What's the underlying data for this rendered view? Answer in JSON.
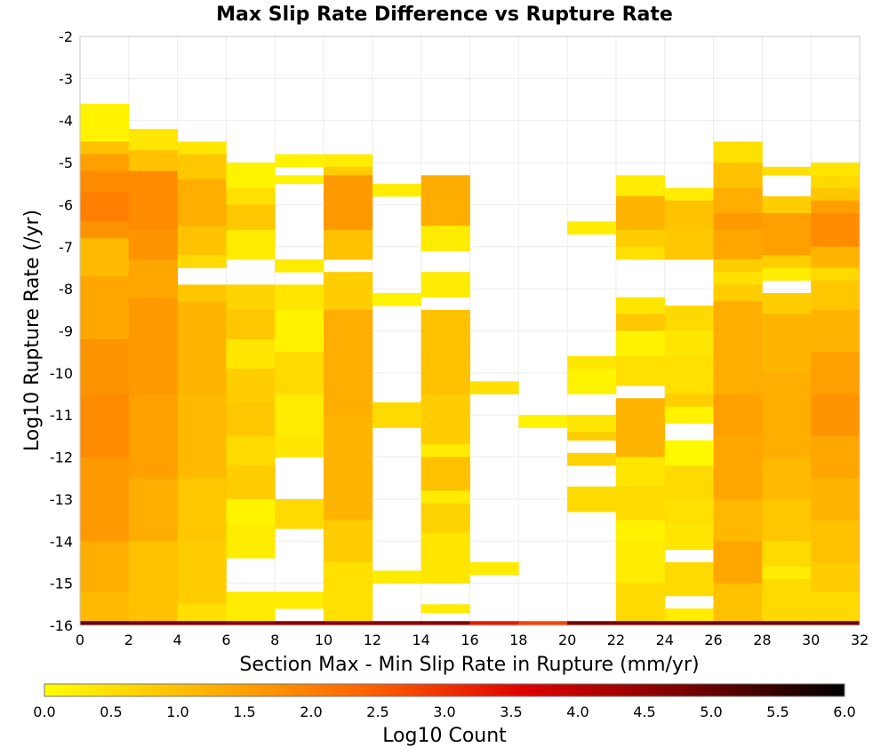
{
  "chart_data": {
    "type": "heatmap",
    "title": "Max Slip Rate Difference vs Rupture Rate",
    "xlabel": "Section Max - Min Slip Rate in Rupture (mm/yr)",
    "ylabel": "Log10 Rupture Rate (/yr)",
    "xlim": [
      0,
      32
    ],
    "ylim": [
      -16,
      -2
    ],
    "x_ticks": [
      "0",
      "2",
      "4",
      "6",
      "8",
      "10",
      "12",
      "14",
      "16",
      "18",
      "20",
      "22",
      "24",
      "26",
      "28",
      "30",
      "32"
    ],
    "y_ticks": [
      "-2",
      "-3",
      "-4",
      "-5",
      "-6",
      "-7",
      "-8",
      "-9",
      "-10",
      "-11",
      "-12",
      "-13",
      "-14",
      "-15",
      "-16"
    ],
    "x_bin_width": 2,
    "y_bin_height": 0.3,
    "color_scale": {
      "label": "Log10 Count",
      "min": 0.0,
      "max": 6.0,
      "ticks": [
        "0.0",
        "0.5",
        "1.0",
        "1.5",
        "2.0",
        "2.5",
        "3.0",
        "3.5",
        "4.0",
        "4.5",
        "5.0",
        "5.5",
        "6.0"
      ],
      "colors": [
        "#ffff00",
        "#ffb400",
        "#ff6400",
        "#e00000",
        "#7a0000",
        "#000000"
      ]
    },
    "columns": [
      {
        "x_start": 0,
        "runs": [
          [
            -4.5,
            -3.6,
            0.2
          ],
          [
            -4.8,
            -4.5,
            1.0
          ],
          [
            -5.2,
            -4.8,
            1.5
          ],
          [
            -5.7,
            -5.2,
            1.8
          ],
          [
            -6.4,
            -5.7,
            2.0
          ],
          [
            -6.8,
            -6.4,
            1.7
          ],
          [
            -7.7,
            -6.8,
            1.1
          ],
          [
            -9.2,
            -7.7,
            1.4
          ],
          [
            -10.5,
            -9.2,
            1.7
          ],
          [
            -12.0,
            -10.5,
            1.8
          ],
          [
            -14.0,
            -12.0,
            1.6
          ],
          [
            -15.2,
            -14.0,
            1.3
          ],
          [
            -15.9,
            -15.2,
            1.1
          ],
          [
            -16.0,
            -15.9,
            5.0
          ]
        ]
      },
      {
        "x_start": 2,
        "runs": [
          [
            -4.7,
            -4.2,
            0.4
          ],
          [
            -5.2,
            -4.7,
            1.0
          ],
          [
            -6.6,
            -5.2,
            1.8
          ],
          [
            -7.3,
            -6.6,
            1.7
          ],
          [
            -8.2,
            -7.3,
            1.4
          ],
          [
            -10.5,
            -8.2,
            1.6
          ],
          [
            -12.5,
            -10.5,
            1.5
          ],
          [
            -14.0,
            -12.5,
            1.3
          ],
          [
            -15.9,
            -14.0,
            1.0
          ],
          [
            -16.0,
            -15.9,
            4.8
          ]
        ]
      },
      {
        "x_start": 4,
        "runs": [
          [
            -4.8,
            -4.5,
            0.4
          ],
          [
            -5.4,
            -4.8,
            0.9
          ],
          [
            -6.5,
            -5.4,
            1.3
          ],
          [
            -7.2,
            -6.5,
            1.0
          ],
          [
            -7.5,
            -7.2,
            0.6
          ],
          [
            -7.9,
            -7.5,
            null
          ],
          [
            -8.3,
            -7.9,
            0.9
          ],
          [
            -10.5,
            -8.3,
            1.2
          ],
          [
            -12.5,
            -10.5,
            1.1
          ],
          [
            -14.0,
            -12.5,
            0.9
          ],
          [
            -15.5,
            -14.0,
            0.8
          ],
          [
            -15.9,
            -15.5,
            0.5
          ],
          [
            -16.0,
            -15.9,
            4.8
          ]
        ]
      },
      {
        "x_start": 6,
        "runs": [
          [
            -5.0,
            -2.0,
            null
          ],
          [
            -5.6,
            -5.0,
            0.2
          ],
          [
            -6.0,
            -5.6,
            0.5
          ],
          [
            -6.6,
            -6.0,
            0.9
          ],
          [
            -7.3,
            -6.6,
            0.3
          ],
          [
            -7.9,
            -7.3,
            null
          ],
          [
            -8.5,
            -7.9,
            0.7
          ],
          [
            -9.2,
            -8.5,
            0.9
          ],
          [
            -9.9,
            -9.2,
            0.4
          ],
          [
            -10.7,
            -9.9,
            0.8
          ],
          [
            -11.5,
            -10.7,
            0.9
          ],
          [
            -12.2,
            -11.5,
            0.6
          ],
          [
            -13.0,
            -12.2,
            0.8
          ],
          [
            -13.6,
            -13.0,
            0.2
          ],
          [
            -14.4,
            -13.6,
            0.3
          ],
          [
            -15.2,
            -14.4,
            null
          ],
          [
            -15.9,
            -15.2,
            0.3
          ],
          [
            -16.0,
            -15.9,
            4.6
          ]
        ]
      },
      {
        "x_start": 8,
        "runs": [
          [
            -4.8,
            -2.0,
            null
          ],
          [
            -5.1,
            -4.8,
            0.2
          ],
          [
            -5.3,
            -5.1,
            null
          ],
          [
            -5.5,
            -5.3,
            0.2
          ],
          [
            -7.3,
            -5.5,
            null
          ],
          [
            -7.6,
            -7.3,
            0.3
          ],
          [
            -7.9,
            -7.6,
            null
          ],
          [
            -8.5,
            -7.9,
            0.4
          ],
          [
            -9.5,
            -8.5,
            0.2
          ],
          [
            -10.5,
            -9.5,
            0.6
          ],
          [
            -11.5,
            -10.5,
            0.3
          ],
          [
            -12.0,
            -11.5,
            0.4
          ],
          [
            -13.0,
            -12.0,
            null
          ],
          [
            -13.7,
            -13.0,
            0.6
          ],
          [
            -15.2,
            -13.7,
            null
          ],
          [
            -15.6,
            -15.2,
            0.3
          ],
          [
            -15.9,
            -15.6,
            null
          ],
          [
            -16.0,
            -15.9,
            4.6
          ]
        ]
      },
      {
        "x_start": 10,
        "runs": [
          [
            -4.8,
            -2.0,
            null
          ],
          [
            -5.1,
            -4.8,
            0.3
          ],
          [
            -5.3,
            -5.1,
            0.8
          ],
          [
            -6.6,
            -5.3,
            1.6
          ],
          [
            -7.3,
            -6.6,
            1.0
          ],
          [
            -7.6,
            -7.3,
            null
          ],
          [
            -8.5,
            -7.6,
            0.8
          ],
          [
            -11.0,
            -8.5,
            1.3
          ],
          [
            -13.5,
            -11.0,
            1.2
          ],
          [
            -14.5,
            -13.5,
            0.8
          ],
          [
            -15.9,
            -14.5,
            0.5
          ],
          [
            -16.0,
            -15.9,
            4.6
          ]
        ]
      },
      {
        "x_start": 12,
        "runs": [
          [
            -5.5,
            -2.0,
            null
          ],
          [
            -5.8,
            -5.5,
            0.3
          ],
          [
            -8.1,
            -5.8,
            null
          ],
          [
            -8.4,
            -8.1,
            0.2
          ],
          [
            -10.7,
            -8.4,
            null
          ],
          [
            -11.3,
            -10.7,
            0.6
          ],
          [
            -14.7,
            -11.3,
            null
          ],
          [
            -15.0,
            -14.7,
            0.3
          ],
          [
            -15.9,
            -15.0,
            null
          ],
          [
            -16.0,
            -15.9,
            4.6
          ]
        ]
      },
      {
        "x_start": 14,
        "runs": [
          [
            -5.3,
            -2.0,
            null
          ],
          [
            -6.5,
            -5.3,
            1.3
          ],
          [
            -7.1,
            -6.5,
            0.3
          ],
          [
            -7.6,
            -7.1,
            null
          ],
          [
            -8.2,
            -7.6,
            0.3
          ],
          [
            -8.5,
            -8.2,
            null
          ],
          [
            -10.5,
            -8.5,
            1.0
          ],
          [
            -11.7,
            -10.5,
            0.8
          ],
          [
            -12.0,
            -11.7,
            0.3
          ],
          [
            -12.8,
            -12.0,
            1.0
          ],
          [
            -13.1,
            -12.8,
            0.3
          ],
          [
            -13.8,
            -13.1,
            0.7
          ],
          [
            -15.0,
            -13.8,
            0.4
          ],
          [
            -15.5,
            -15.0,
            null
          ],
          [
            -15.7,
            -15.5,
            0.3
          ],
          [
            -15.9,
            -15.7,
            null
          ],
          [
            -16.0,
            -15.9,
            4.6
          ]
        ]
      },
      {
        "x_start": 16,
        "runs": [
          [
            -10.2,
            -2.0,
            null
          ],
          [
            -10.5,
            -10.2,
            0.5
          ],
          [
            -14.5,
            -10.5,
            null
          ],
          [
            -14.8,
            -14.5,
            0.3
          ],
          [
            -15.9,
            -14.8,
            null
          ],
          [
            -16.0,
            -15.9,
            3.3
          ]
        ]
      },
      {
        "x_start": 18,
        "runs": [
          [
            -11.0,
            -2.0,
            null
          ],
          [
            -11.3,
            -11.0,
            0.2
          ],
          [
            -15.9,
            -11.3,
            null
          ],
          [
            -16.0,
            -15.9,
            2.8
          ]
        ]
      },
      {
        "x_start": 20,
        "runs": [
          [
            -6.4,
            -2.0,
            null
          ],
          [
            -6.7,
            -6.4,
            0.3
          ],
          [
            -9.6,
            -6.7,
            null
          ],
          [
            -9.9,
            -9.6,
            0.4
          ],
          [
            -10.5,
            -9.9,
            0.2
          ],
          [
            -11.0,
            -10.5,
            null
          ],
          [
            -11.4,
            -11.0,
            0.4
          ],
          [
            -11.6,
            -11.4,
            0.8
          ],
          [
            -11.9,
            -11.6,
            null
          ],
          [
            -12.2,
            -11.9,
            0.7
          ],
          [
            -12.7,
            -12.2,
            null
          ],
          [
            -13.3,
            -12.7,
            0.6
          ],
          [
            -15.9,
            -13.3,
            null
          ],
          [
            -16.0,
            -15.9,
            4.8
          ]
        ]
      },
      {
        "x_start": 22,
        "runs": [
          [
            -5.3,
            -2.0,
            null
          ],
          [
            -5.8,
            -5.3,
            0.3
          ],
          [
            -6.6,
            -5.8,
            1.2
          ],
          [
            -7.0,
            -6.6,
            0.8
          ],
          [
            -7.3,
            -7.0,
            0.5
          ],
          [
            -8.2,
            -7.3,
            null
          ],
          [
            -8.6,
            -8.2,
            0.4
          ],
          [
            -9.0,
            -8.6,
            0.9
          ],
          [
            -9.6,
            -9.0,
            0.2
          ],
          [
            -10.3,
            -9.6,
            0.5
          ],
          [
            -10.6,
            -10.3,
            null
          ],
          [
            -12.0,
            -10.6,
            1.2
          ],
          [
            -12.7,
            -12.0,
            0.4
          ],
          [
            -13.5,
            -12.7,
            0.6
          ],
          [
            -14.0,
            -13.5,
            0.2
          ],
          [
            -15.0,
            -14.0,
            0.3
          ],
          [
            -15.9,
            -15.0,
            0.6
          ],
          [
            -16.0,
            -15.9,
            4.8
          ]
        ]
      },
      {
        "x_start": 24,
        "runs": [
          [
            -5.6,
            -2.0,
            null
          ],
          [
            -5.9,
            -5.6,
            0.3
          ],
          [
            -6.5,
            -5.9,
            1.0
          ],
          [
            -7.3,
            -6.5,
            0.9
          ],
          [
            -8.4,
            -7.3,
            null
          ],
          [
            -9.0,
            -8.4,
            0.6
          ],
          [
            -9.6,
            -9.0,
            0.4
          ],
          [
            -10.5,
            -9.6,
            0.5
          ],
          [
            -10.8,
            -10.5,
            0.8
          ],
          [
            -11.2,
            -10.8,
            0.2
          ],
          [
            -11.6,
            -11.2,
            null
          ],
          [
            -12.2,
            -11.6,
            0.1
          ],
          [
            -13.0,
            -12.2,
            0.6
          ],
          [
            -13.6,
            -13.0,
            0.5
          ],
          [
            -14.2,
            -13.6,
            0.4
          ],
          [
            -14.5,
            -14.2,
            null
          ],
          [
            -15.3,
            -14.5,
            0.6
          ],
          [
            -15.6,
            -15.3,
            null
          ],
          [
            -15.9,
            -15.6,
            0.3
          ],
          [
            -16.0,
            -15.9,
            4.8
          ]
        ]
      },
      {
        "x_start": 26,
        "runs": [
          [
            -4.5,
            -2.0,
            null
          ],
          [
            -5.0,
            -4.5,
            0.5
          ],
          [
            -5.6,
            -5.0,
            1.0
          ],
          [
            -6.2,
            -5.6,
            1.3
          ],
          [
            -6.6,
            -6.2,
            1.6
          ],
          [
            -7.3,
            -6.6,
            1.4
          ],
          [
            -7.6,
            -7.3,
            0.8
          ],
          [
            -7.9,
            -7.6,
            0.5
          ],
          [
            -8.3,
            -7.9,
            0.8
          ],
          [
            -10.5,
            -8.3,
            1.3
          ],
          [
            -11.5,
            -10.5,
            1.5
          ],
          [
            -13.0,
            -11.5,
            1.4
          ],
          [
            -14.0,
            -13.0,
            1.1
          ],
          [
            -15.0,
            -14.0,
            1.4
          ],
          [
            -15.9,
            -15.0,
            1.0
          ],
          [
            -16.0,
            -15.9,
            4.9
          ]
        ]
      },
      {
        "x_start": 28,
        "runs": [
          [
            -5.1,
            -2.0,
            null
          ],
          [
            -5.3,
            -5.1,
            0.5
          ],
          [
            -5.8,
            -5.3,
            null
          ],
          [
            -6.2,
            -5.8,
            0.8
          ],
          [
            -7.2,
            -6.2,
            1.5
          ],
          [
            -7.5,
            -7.2,
            0.8
          ],
          [
            -7.8,
            -7.5,
            0.3
          ],
          [
            -8.1,
            -7.8,
            null
          ],
          [
            -8.6,
            -8.1,
            0.8
          ],
          [
            -10.0,
            -8.6,
            1.2
          ],
          [
            -12.0,
            -10.0,
            1.3
          ],
          [
            -13.0,
            -12.0,
            1.1
          ],
          [
            -14.0,
            -13.0,
            0.9
          ],
          [
            -14.6,
            -14.0,
            0.6
          ],
          [
            -14.9,
            -14.6,
            0.3
          ],
          [
            -15.9,
            -14.9,
            0.6
          ],
          [
            -16.0,
            -15.9,
            4.9
          ]
        ]
      },
      {
        "x_start": 30,
        "runs": [
          [
            -5.0,
            -2.0,
            null
          ],
          [
            -5.3,
            -5.0,
            0.4
          ],
          [
            -5.6,
            -5.3,
            0.6
          ],
          [
            -5.9,
            -5.6,
            0.9
          ],
          [
            -6.2,
            -5.9,
            1.5
          ],
          [
            -7.0,
            -6.2,
            1.8
          ],
          [
            -7.5,
            -7.0,
            1.2
          ],
          [
            -7.8,
            -7.5,
            0.6
          ],
          [
            -8.5,
            -7.8,
            0.9
          ],
          [
            -9.5,
            -8.5,
            1.2
          ],
          [
            -10.5,
            -9.5,
            1.5
          ],
          [
            -11.5,
            -10.5,
            1.7
          ],
          [
            -12.5,
            -11.5,
            1.4
          ],
          [
            -13.5,
            -12.5,
            1.2
          ],
          [
            -14.5,
            -13.5,
            1.0
          ],
          [
            -15.2,
            -14.5,
            0.8
          ],
          [
            -15.9,
            -15.2,
            0.6
          ],
          [
            -16.0,
            -15.9,
            4.9
          ]
        ]
      }
    ]
  }
}
